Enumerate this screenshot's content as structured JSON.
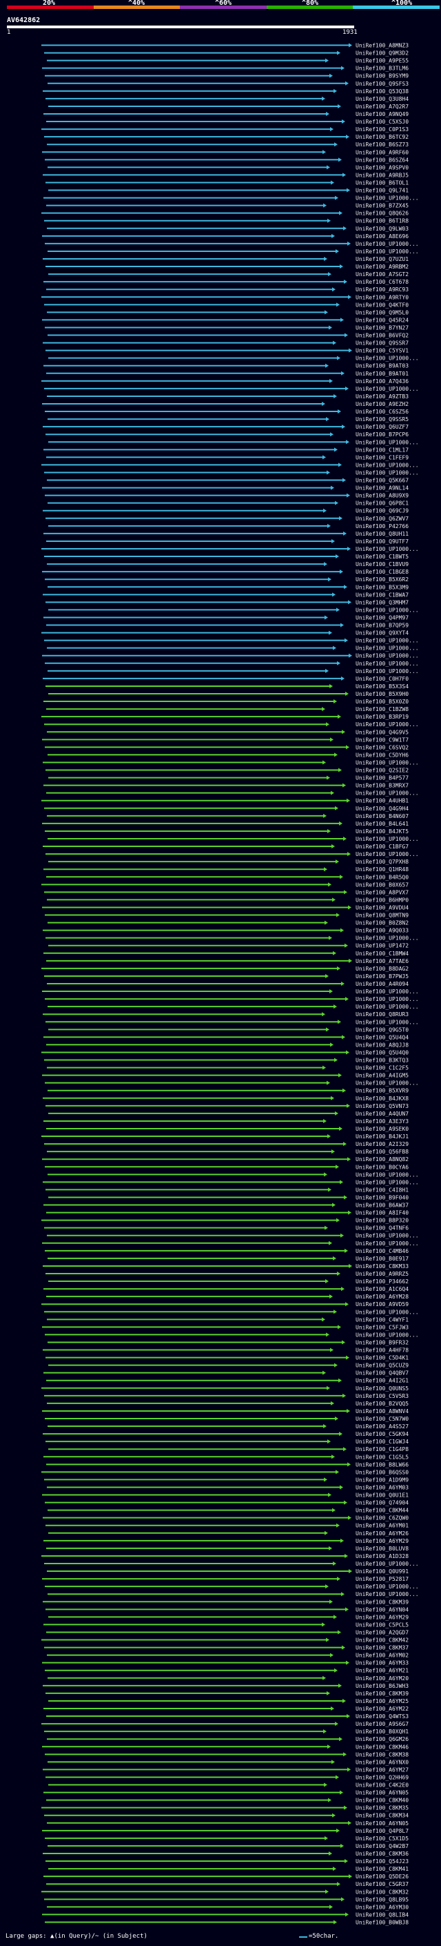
{
  "query": {
    "id": "AV642862",
    "start": "1",
    "end": "1931"
  },
  "scale": {
    "labels": [
      "20%",
      "^40%",
      "^60%",
      "^80%",
      "^100%"
    ],
    "colors": [
      "#d6001c",
      "#e8871e",
      "#8e2fb0",
      "#27b000",
      "#39c8e8"
    ]
  },
  "hit_colors": {
    "high": "#3fb8e0",
    "mid": "#5bd42c"
  },
  "hits": [
    {
      "id": "UniRef100_A8MNZ3"
    },
    {
      "id": "UniRef100_Q9M3D2"
    },
    {
      "id": "UniRef100_A9PE55"
    },
    {
      "id": "UniRef100_B3TLM6"
    },
    {
      "id": "UniRef100_B9SYM9"
    },
    {
      "id": "UniRef100_Q9SFS3"
    },
    {
      "id": "UniRef100_Q53Q38"
    },
    {
      "id": "UniRef100_Q3U8H4"
    },
    {
      "id": "UniRef100_A7Q2R7"
    },
    {
      "id": "UniRef100_A9NQ49"
    },
    {
      "id": "UniRef100_C5XSJ0"
    },
    {
      "id": "UniRef100_C0P1S3"
    },
    {
      "id": "UniRef100_B6TC92"
    },
    {
      "id": "UniRef100_B6SZ73"
    },
    {
      "id": "UniRef100_A9RF60"
    },
    {
      "id": "UniRef100_B6SZ64"
    },
    {
      "id": "UniRef100_A9SPV0"
    },
    {
      "id": "UniRef100_A9RBJ5"
    },
    {
      "id": "UniRef100_B6TOL1"
    },
    {
      "id": "UniRef100_Q9L741"
    },
    {
      "id": "UniRef100_UP1000..."
    },
    {
      "id": "UniRef100_B7ZX45"
    },
    {
      "id": "UniRef100_Q8Q626"
    },
    {
      "id": "UniRef100_B6T1R8"
    },
    {
      "id": "UniRef100_Q9LW03"
    },
    {
      "id": "UniRef100_A8E696"
    },
    {
      "id": "UniRef100_UP1000..."
    },
    {
      "id": "UniRef100_UP1000..."
    },
    {
      "id": "UniRef100_Q7UZU1"
    },
    {
      "id": "UniRef100_A9RBM2"
    },
    {
      "id": "UniRef100_A7SGT2"
    },
    {
      "id": "UniRef100_C6T678"
    },
    {
      "id": "UniRef100_A9RC93"
    },
    {
      "id": "UniRef100_A9RTY0"
    },
    {
      "id": "UniRef100_Q4KTF0"
    },
    {
      "id": "UniRef100_Q9M5L0"
    },
    {
      "id": "UniRef100_Q45R24"
    },
    {
      "id": "UniRef100_B7YN27"
    },
    {
      "id": "UniRef100_B6VFQ2"
    },
    {
      "id": "UniRef100_Q9SSR7"
    },
    {
      "id": "UniRef100_C5YSV1"
    },
    {
      "id": "UniRef100_UP1000..."
    },
    {
      "id": "UniRef100_B9AT03"
    },
    {
      "id": "UniRef100_B9AT01"
    },
    {
      "id": "UniRef100_A7Q436"
    },
    {
      "id": "UniRef100_UP1000..."
    },
    {
      "id": "UniRef100_A9ZTB3"
    },
    {
      "id": "UniRef100_A9EZH2"
    },
    {
      "id": "UniRef100_C6SZ56"
    },
    {
      "id": "UniRef100_Q9SSR5"
    },
    {
      "id": "UniRef100_Q6UZF7"
    },
    {
      "id": "UniRef100_B7PCP6"
    },
    {
      "id": "UniRef100_UP1000..."
    },
    {
      "id": "UniRef100_C1ML17"
    },
    {
      "id": "UniRef100_C1FEF9"
    },
    {
      "id": "UniRef100_UP1000..."
    },
    {
      "id": "UniRef100_UP1000..."
    },
    {
      "id": "UniRef100_Q5K667"
    },
    {
      "id": "UniRef100_A9NL14"
    },
    {
      "id": "UniRef100_A8U9X9"
    },
    {
      "id": "UniRef100_Q6P8C1"
    },
    {
      "id": "UniRef100_Q69CJ9"
    },
    {
      "id": "UniRef100_Q6ZWV7"
    },
    {
      "id": "UniRef100_P42766"
    },
    {
      "id": "UniRef100_Q8UH11"
    },
    {
      "id": "UniRef100_Q9UTF7"
    },
    {
      "id": "UniRef100_UP1000..."
    },
    {
      "id": "UniRef100_C1BWT5"
    },
    {
      "id": "UniRef100_C1BVU9"
    },
    {
      "id": "UniRef100_C1BGE8"
    },
    {
      "id": "UniRef100_B5X6R2"
    },
    {
      "id": "UniRef100_B5X3M9"
    },
    {
      "id": "UniRef100_C1BWA7"
    },
    {
      "id": "UniRef100_Q3MHM7"
    },
    {
      "id": "UniRef100_UP1000..."
    },
    {
      "id": "UniRef100_Q4PM97"
    },
    {
      "id": "UniRef100_B7QP59"
    },
    {
      "id": "UniRef100_Q9XYT4"
    },
    {
      "id": "UniRef100_UP1000..."
    },
    {
      "id": "UniRef100_UP1000..."
    },
    {
      "id": "UniRef100_UP1000..."
    },
    {
      "id": "UniRef100_UP1000..."
    },
    {
      "id": "UniRef100_UP1000..."
    },
    {
      "id": "UniRef100_C0H7F0"
    },
    {
      "id": "UniRef100_B5X3S4"
    },
    {
      "id": "UniRef100_B5X9H0"
    },
    {
      "id": "UniRef100_B5X0Z0"
    },
    {
      "id": "UniRef100_C1BZW8"
    },
    {
      "id": "UniRef100_B3RP19"
    },
    {
      "id": "UniRef100_UP1000..."
    },
    {
      "id": "UniRef100_Q4G9V5"
    },
    {
      "id": "UniRef100_C9W1T7"
    },
    {
      "id": "UniRef100_C6SVQ2"
    },
    {
      "id": "UniRef100_C5DYH6"
    },
    {
      "id": "UniRef100_UP1000..."
    },
    {
      "id": "UniRef100_Q2SIE2"
    },
    {
      "id": "UniRef100_B4P577"
    },
    {
      "id": "UniRef100_B3MRX7"
    },
    {
      "id": "UniRef100_UP1000..."
    },
    {
      "id": "UniRef100_A4UHB1"
    },
    {
      "id": "UniRef100_Q4G9H4"
    },
    {
      "id": "UniRef100_B4N607"
    },
    {
      "id": "UniRef100_B4L641"
    },
    {
      "id": "UniRef100_B4JKT5"
    },
    {
      "id": "UniRef100_UP1000..."
    },
    {
      "id": "UniRef100_C1BFG7"
    },
    {
      "id": "UniRef100_UP1000..."
    },
    {
      "id": "UniRef100_Q7PXH8"
    },
    {
      "id": "UniRef100_Q1HR48"
    },
    {
      "id": "UniRef100_B4R5Q0"
    },
    {
      "id": "UniRef100_B0X657"
    },
    {
      "id": "UniRef100_A8PVX7"
    },
    {
      "id": "UniRef100_B6HMP0"
    },
    {
      "id": "UniRef100_A9VDU4"
    },
    {
      "id": "UniRef100_Q8MTN9"
    },
    {
      "id": "UniRef100_B0Z8N2"
    },
    {
      "id": "UniRef100_A9Q033"
    },
    {
      "id": "UniRef100_UP1000..."
    },
    {
      "id": "UniRef100_UP1472"
    },
    {
      "id": "UniRef100_C1BMW4"
    },
    {
      "id": "UniRef100_A7TAE6"
    },
    {
      "id": "UniRef100_B8DAG2"
    },
    {
      "id": "UniRef100_B7PWJ5"
    },
    {
      "id": "UniRef100_A4R094"
    },
    {
      "id": "UniRef100_UP1000..."
    },
    {
      "id": "UniRef100_UP1000..."
    },
    {
      "id": "UniRef100_UP1000..."
    },
    {
      "id": "UniRef100_Q8RUR3"
    },
    {
      "id": "UniRef100_UP1000..."
    },
    {
      "id": "UniRef100_Q9G5T0"
    },
    {
      "id": "UniRef100_Q5U4Q4"
    },
    {
      "id": "UniRef100_A8QJJ8"
    },
    {
      "id": "UniRef100_Q5U4Q0"
    },
    {
      "id": "UniRef100_B3KTQ3"
    },
    {
      "id": "UniRef100_C1C2F5"
    },
    {
      "id": "UniRef100_A4IGM5"
    },
    {
      "id": "UniRef100_UP1000..."
    },
    {
      "id": "UniRef100_B5XVR9"
    },
    {
      "id": "UniRef100_B4JKX8"
    },
    {
      "id": "UniRef100_Q5VN73"
    },
    {
      "id": "UniRef100_A4QUN7"
    },
    {
      "id": "UniRef100_A3E3Y3"
    },
    {
      "id": "UniRef100_A9SEK0"
    },
    {
      "id": "UniRef100_B4JKJ1"
    },
    {
      "id": "UniRef100_A2I329"
    },
    {
      "id": "UniRef100_Q56FB8"
    },
    {
      "id": "UniRef100_A8NQ82"
    },
    {
      "id": "UniRef100_B0CYA6"
    },
    {
      "id": "UniRef100_UP1000..."
    },
    {
      "id": "UniRef100_UP1000..."
    },
    {
      "id": "UniRef100_C4I8H1"
    },
    {
      "id": "UniRef100_B9F040"
    },
    {
      "id": "UniRef100_B6AW37"
    },
    {
      "id": "UniRef100_A8IF40"
    },
    {
      "id": "UniRef100_B8P320"
    },
    {
      "id": "UniRef100_Q4TNF6"
    },
    {
      "id": "UniRef100_UP1000..."
    },
    {
      "id": "UniRef100_UP1000..."
    },
    {
      "id": "UniRef100_C4MB46"
    },
    {
      "id": "UniRef100_B0E917"
    },
    {
      "id": "UniRef100_C8KM33"
    },
    {
      "id": "UniRef100_A9RRZ5"
    },
    {
      "id": "UniRef100_P34662"
    },
    {
      "id": "UniRef100_A1C6Q4"
    },
    {
      "id": "UniRef100_A6YM28"
    },
    {
      "id": "UniRef100_A9VD59"
    },
    {
      "id": "UniRef100_UP1000..."
    },
    {
      "id": "UniRef100_C4WYF1"
    },
    {
      "id": "UniRef100_C5FJW3"
    },
    {
      "id": "UniRef100_UP1000..."
    },
    {
      "id": "UniRef100_B9FR32"
    },
    {
      "id": "UniRef100_A4HF78"
    },
    {
      "id": "UniRef100_C5D4K1"
    },
    {
      "id": "UniRef100_Q5CUZ9"
    },
    {
      "id": "UniRef100_Q4QBV7"
    },
    {
      "id": "UniRef100_A4I2G1"
    },
    {
      "id": "UniRef100_Q0UNS5"
    },
    {
      "id": "UniRef100_C5V5R3"
    },
    {
      "id": "UniRef100_B2VQQ5"
    },
    {
      "id": "UniRef100_A8WNV4"
    },
    {
      "id": "UniRef100_C5N7W0"
    },
    {
      "id": "UniRef100_A4S527"
    },
    {
      "id": "UniRef100_C5GK94"
    },
    {
      "id": "UniRef100_C1GWJ4"
    },
    {
      "id": "UniRef100_C1G4P8"
    },
    {
      "id": "UniRef100_C1G5L5"
    },
    {
      "id": "UniRef100_B8LW66"
    },
    {
      "id": "UniRef100_B6QSS0"
    },
    {
      "id": "UniRef100_A1D9M9"
    },
    {
      "id": "UniRef100_A6YM03"
    },
    {
      "id": "UniRef100_Q0U1E1"
    },
    {
      "id": "UniRef100_Q74904"
    },
    {
      "id": "UniRef100_C8KM44"
    },
    {
      "id": "UniRef100_C6ZQW0"
    },
    {
      "id": "UniRef100_A6YM01"
    },
    {
      "id": "UniRef100_A6YM26"
    },
    {
      "id": "UniRef100_A6YM29"
    },
    {
      "id": "UniRef100_B0LUV8"
    },
    {
      "id": "UniRef100_A1D328"
    },
    {
      "id": "UniRef100_UP1000..."
    },
    {
      "id": "UniRef100_Q0U991"
    },
    {
      "id": "UniRef100_P52817"
    },
    {
      "id": "UniRef100_UP1000..."
    },
    {
      "id": "UniRef100_UP1000..."
    },
    {
      "id": "UniRef100_C8KM39"
    },
    {
      "id": "UniRef100_A6YN04"
    },
    {
      "id": "UniRef100_A6YM29"
    },
    {
      "id": "UniRef100_C5PCL5"
    },
    {
      "id": "UniRef100_A2QGD7"
    },
    {
      "id": "UniRef100_C8KM42"
    },
    {
      "id": "UniRef100_C8KM37"
    },
    {
      "id": "UniRef100_A6YM02"
    },
    {
      "id": "UniRef100_A6YM33"
    },
    {
      "id": "UniRef100_A6YM21"
    },
    {
      "id": "UniRef100_A6YM20"
    },
    {
      "id": "UniRef100_B6JWH3"
    },
    {
      "id": "UniRef100_C8KM39"
    },
    {
      "id": "UniRef100_A6YM25"
    },
    {
      "id": "UniRef100_A6YM22"
    },
    {
      "id": "UniRef100_Q4WTS3"
    },
    {
      "id": "UniRef100_A9S6G7"
    },
    {
      "id": "UniRef100_B0XQH1"
    },
    {
      "id": "UniRef100_Q6GM26"
    },
    {
      "id": "UniRef100_C8KM46"
    },
    {
      "id": "UniRef100_C8KM38"
    },
    {
      "id": "UniRef100_A6YNX0"
    },
    {
      "id": "UniRef100_A6YM27"
    },
    {
      "id": "UniRef100_Q2HH69"
    },
    {
      "id": "UniRef100_C4K2E0"
    },
    {
      "id": "UniRef100_A6YN05"
    },
    {
      "id": "UniRef100_C8KM40"
    },
    {
      "id": "UniRef100_C8KM35"
    },
    {
      "id": "UniRef100_C8KM34"
    },
    {
      "id": "UniRef100_A6YN05"
    },
    {
      "id": "UniRef100_Q4P8L7"
    },
    {
      "id": "UniRef100_C5X1D5"
    },
    {
      "id": "UniRef100_Q4W2B7"
    },
    {
      "id": "UniRef100_C8KM36"
    },
    {
      "id": "UniRef100_Q54J23"
    },
    {
      "id": "UniRef100_C8KM41"
    },
    {
      "id": "UniRef100_Q5DE26"
    },
    {
      "id": "UniRef100_C5GR37"
    },
    {
      "id": "UniRef100_C8KM32"
    },
    {
      "id": "UniRef100_Q8LB95"
    },
    {
      "id": "UniRef100_A6YM30"
    },
    {
      "id": "UniRef100_Q8LIB4"
    },
    {
      "id": "UniRef100_B0WBJ8"
    }
  ],
  "footer": {
    "gaps_label": "Large gaps: ▲(in Query)/~ (in Subject)",
    "scale_key": "=50char."
  }
}
